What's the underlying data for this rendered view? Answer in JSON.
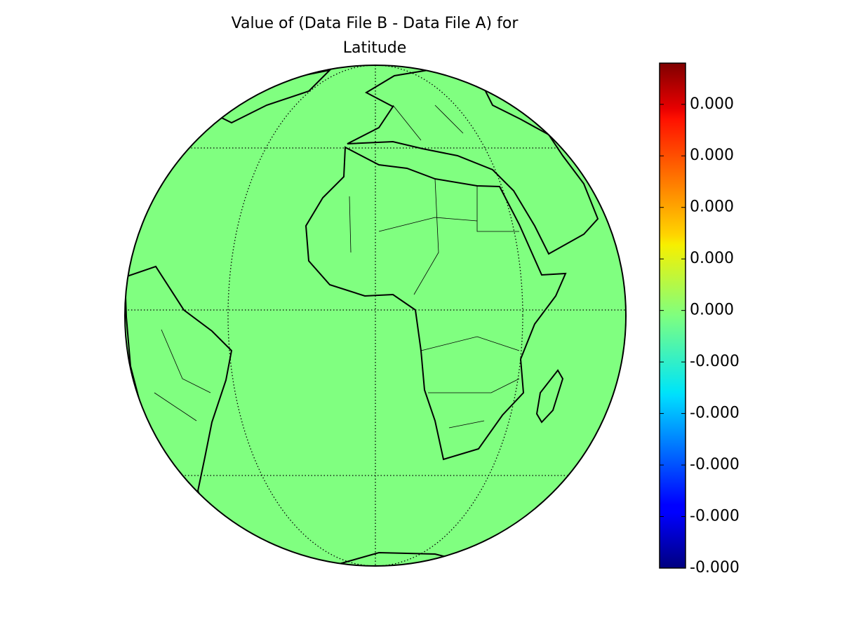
{
  "chart_data": {
    "type": "map",
    "title_lines": [
      "Value of (Data File B - Data File A) for",
      "Latitude"
    ],
    "projection": "orthographic",
    "fill_color": "#80ff80",
    "grid": true,
    "colorbar": {
      "cmap": "jet",
      "lim": [
        -5e-05,
        4.8e-05
      ],
      "ticks": [
        {
          "value": -5e-05,
          "label": "-0.000"
        },
        {
          "value": -4e-05,
          "label": "-0.000"
        },
        {
          "value": -3e-05,
          "label": "-0.000"
        },
        {
          "value": -2e-05,
          "label": "-0.000"
        },
        {
          "value": -1e-05,
          "label": "-0.000"
        },
        {
          "value": 0,
          "label": "0.000"
        },
        {
          "value": 1e-05,
          "label": "0.000"
        },
        {
          "value": 2e-05,
          "label": "0.000"
        },
        {
          "value": 3e-05,
          "label": "0.000"
        },
        {
          "value": 4e-05,
          "label": "0.000"
        }
      ]
    }
  }
}
